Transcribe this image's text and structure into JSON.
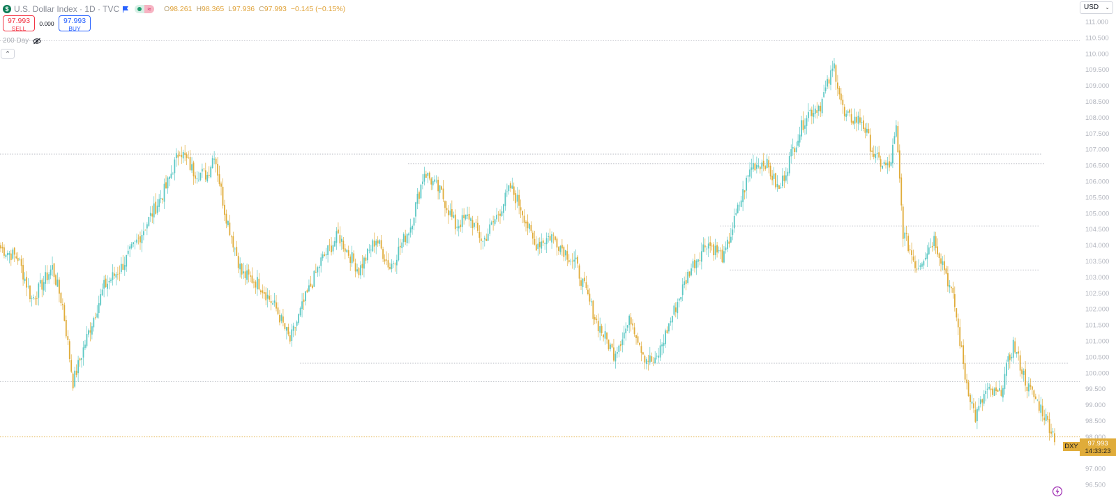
{
  "header": {
    "symbol_icon": "dollar-sign-icon",
    "symbol_glyph": "$",
    "title": "U.S. Dollar Index · 1D · TVC",
    "flag_icon": "flag-icon",
    "status_icons": [
      "market-open-dot-icon",
      "wave-icon"
    ],
    "ohlc": {
      "o_label": "O",
      "o": "98.261",
      "h_label": "H",
      "h": "98.365",
      "l_label": "L",
      "l": "97.936",
      "c_label": "C",
      "c": "97.993",
      "change": "−0.145 (−0.15%)"
    }
  },
  "trade": {
    "sell_price": "97.993",
    "sell_label": "SELL",
    "spread": "0.000",
    "buy_price": "97.993",
    "buy_label": "BUY"
  },
  "indicator": {
    "label": "200 Day",
    "icon": "eye-off-icon"
  },
  "collapse_icon": "chevron-up-icon",
  "currency": {
    "label": "USD",
    "icon": "chevron-down-icon"
  },
  "last_price": {
    "symbol": "DXY",
    "price": "97.993",
    "countdown": "14:33:23"
  },
  "footer_icon": "lightning-icon",
  "colors": {
    "up": "#5cc8c4",
    "down": "#e0ac3a",
    "grid_dotted": "#b2b5be",
    "price_line": "#e0ac3a"
  },
  "chart_data": {
    "type": "candlestick",
    "title": "U.S. Dollar Index · 1D · TVC",
    "y_ticks": [
      "111.000",
      "110.500",
      "110.000",
      "109.500",
      "109.000",
      "108.500",
      "108.000",
      "107.500",
      "107.000",
      "106.500",
      "106.000",
      "105.500",
      "105.000",
      "104.500",
      "104.000",
      "103.500",
      "103.000",
      "102.500",
      "102.000",
      "101.500",
      "101.000",
      "100.500",
      "100.000",
      "99.500",
      "99.000",
      "98.500",
      "98.000",
      "97.500",
      "97.000",
      "96.500"
    ],
    "ylim": [
      96.4,
      111.15
    ],
    "grid": false,
    "x_range_candles": 360,
    "price_path": [
      {
        "i": 0,
        "v": 103.9
      },
      {
        "i": 10,
        "v": 103.6
      },
      {
        "i": 18,
        "v": 102.3
      },
      {
        "i": 22,
        "v": 102.6
      },
      {
        "i": 30,
        "v": 103.3
      },
      {
        "i": 36,
        "v": 102.1
      },
      {
        "i": 42,
        "v": 99.7
      },
      {
        "i": 50,
        "v": 101.1
      },
      {
        "i": 60,
        "v": 102.7
      },
      {
        "i": 70,
        "v": 103.3
      },
      {
        "i": 80,
        "v": 104.2
      },
      {
        "i": 88,
        "v": 105.0
      },
      {
        "i": 96,
        "v": 105.8
      },
      {
        "i": 104,
        "v": 107.0
      },
      {
        "i": 112,
        "v": 106.3
      },
      {
        "i": 120,
        "v": 106.2
      },
      {
        "i": 124,
        "v": 106.9
      },
      {
        "i": 130,
        "v": 105.1
      },
      {
        "i": 140,
        "v": 103.1
      },
      {
        "i": 150,
        "v": 102.8
      },
      {
        "i": 160,
        "v": 102.0
      },
      {
        "i": 168,
        "v": 101.0
      },
      {
        "i": 176,
        "v": 102.2
      },
      {
        "i": 186,
        "v": 103.5
      },
      {
        "i": 196,
        "v": 104.3
      },
      {
        "i": 208,
        "v": 103.2
      },
      {
        "i": 218,
        "v": 104.2
      },
      {
        "i": 226,
        "v": 103.3
      },
      {
        "i": 238,
        "v": 104.6
      },
      {
        "i": 246,
        "v": 106.3
      },
      {
        "i": 256,
        "v": 105.6
      },
      {
        "i": 264,
        "v": 104.6
      },
      {
        "i": 272,
        "v": 104.9
      },
      {
        "i": 280,
        "v": 104.1
      },
      {
        "i": 290,
        "v": 105.1
      },
      {
        "i": 296,
        "v": 105.8
      },
      {
        "i": 302,
        "v": 105.2
      },
      {
        "i": 310,
        "v": 104.0
      },
      {
        "i": 320,
        "v": 104.3
      },
      {
        "i": 334,
        "v": 103.4
      },
      {
        "i": 346,
        "v": 101.6
      },
      {
        "i": 356,
        "v": 100.6
      },
      {
        "i": 366,
        "v": 101.7
      },
      {
        "i": 374,
        "v": 100.5
      },
      {
        "i": 380,
        "v": 100.3
      },
      {
        "i": 390,
        "v": 101.8
      },
      {
        "i": 400,
        "v": 103.2
      },
      {
        "i": 410,
        "v": 104.1
      },
      {
        "i": 420,
        "v": 103.6
      },
      {
        "i": 428,
        "v": 105.1
      },
      {
        "i": 436,
        "v": 106.5
      },
      {
        "i": 444,
        "v": 106.6
      },
      {
        "i": 452,
        "v": 105.7
      },
      {
        "i": 460,
        "v": 107.0
      },
      {
        "i": 468,
        "v": 108.1
      },
      {
        "i": 476,
        "v": 108.4
      },
      {
        "i": 484,
        "v": 109.6
      },
      {
        "i": 490,
        "v": 108.0
      },
      {
        "i": 500,
        "v": 107.9
      },
      {
        "i": 508,
        "v": 106.7
      },
      {
        "i": 516,
        "v": 106.4
      },
      {
        "i": 520,
        "v": 107.6
      },
      {
        "i": 524,
        "v": 104.4
      },
      {
        "i": 532,
        "v": 103.3
      },
      {
        "i": 542,
        "v": 104.2
      },
      {
        "i": 548,
        "v": 103.3
      },
      {
        "i": 554,
        "v": 102.1
      },
      {
        "i": 560,
        "v": 99.9
      },
      {
        "i": 566,
        "v": 98.6
      },
      {
        "i": 572,
        "v": 99.4
      },
      {
        "i": 580,
        "v": 99.3
      },
      {
        "i": 588,
        "v": 100.9
      },
      {
        "i": 596,
        "v": 99.6
      },
      {
        "i": 604,
        "v": 98.9
      },
      {
        "i": 612,
        "v": 98.0
      }
    ],
    "horizontal_levels": [
      {
        "price": 110.4,
        "from": 0,
        "to": 1.0
      },
      {
        "price": 106.85,
        "from": 0,
        "to": 0.965
      },
      {
        "price": 106.55,
        "from": 0.378,
        "to": 0.968
      },
      {
        "price": 104.6,
        "from": 0.667,
        "to": 0.963
      },
      {
        "price": 103.22,
        "from": 0.676,
        "to": 0.962
      },
      {
        "price": 100.3,
        "from": 0.278,
        "to": 0.99
      },
      {
        "price": 99.72,
        "from": 0,
        "to": 1.0
      }
    ],
    "last_price": 97.993
  }
}
